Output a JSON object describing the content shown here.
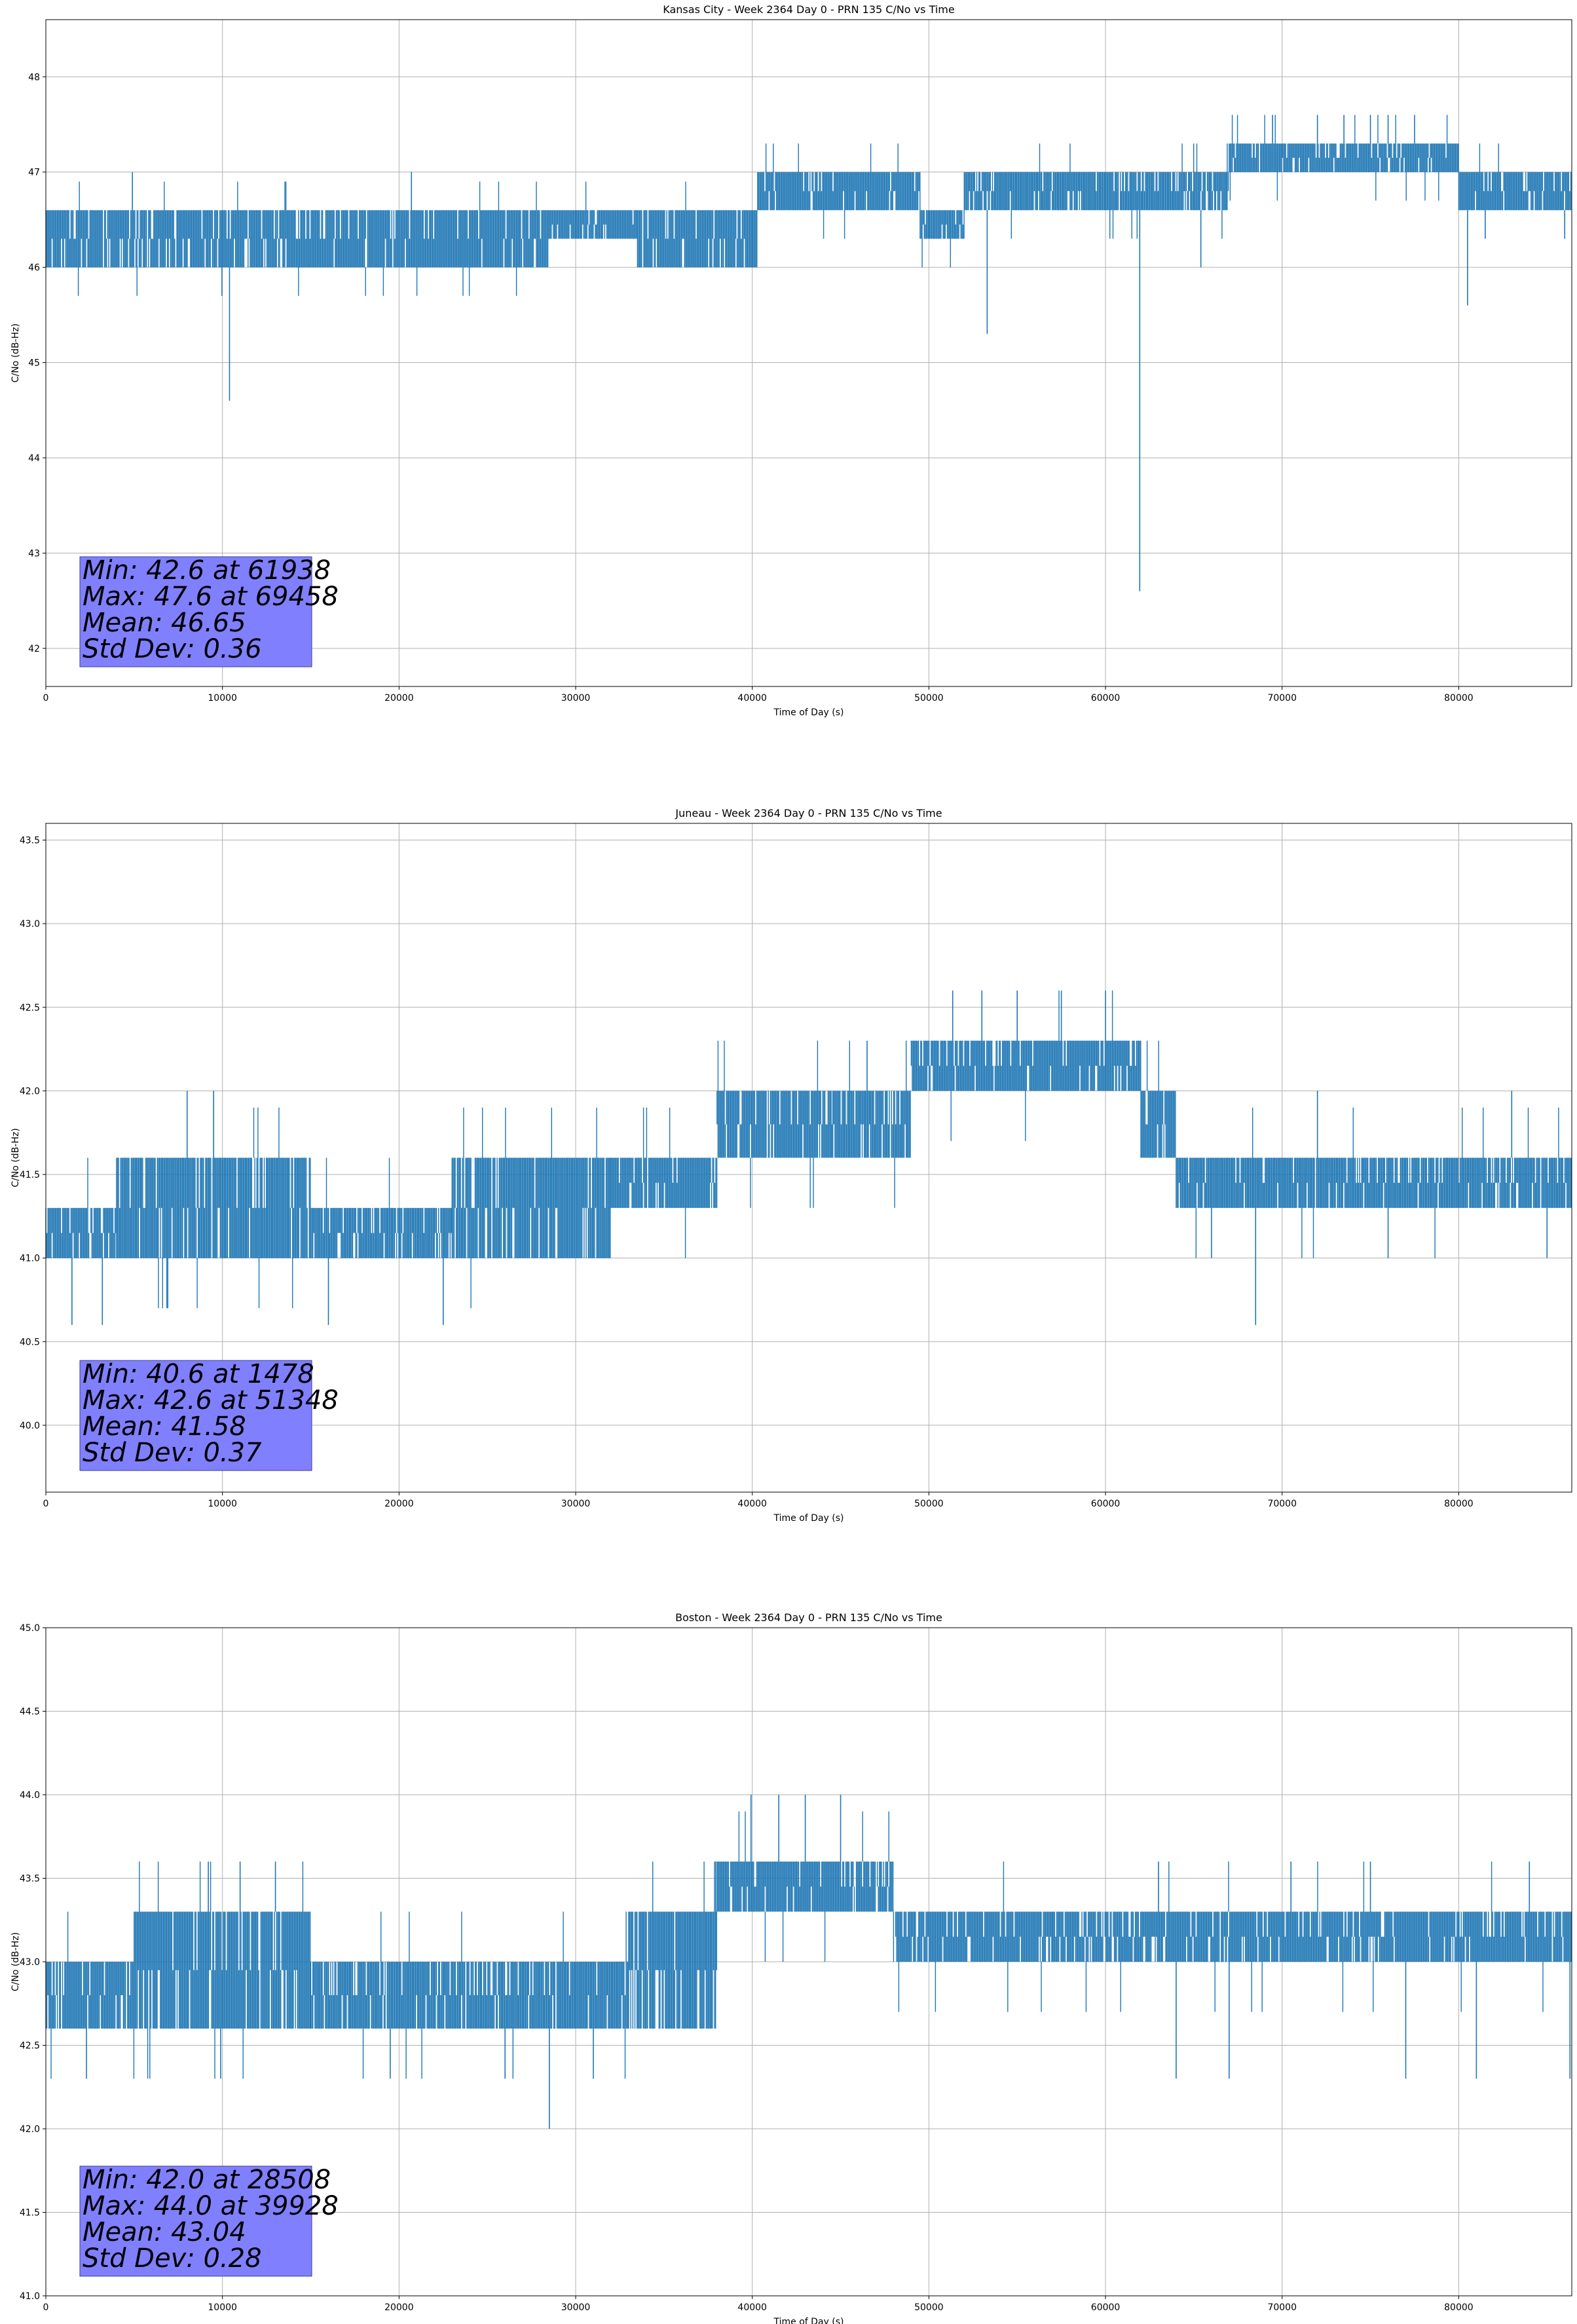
{
  "figure": {
    "background": "#ffffff"
  },
  "series_color": "#1f77b4",
  "stats_box_color": "#8080ff",
  "chart_data": [
    {
      "type": "line",
      "title": "Kansas City - Week 2364 Day 0 - PRN 135 C/No vs Time",
      "xlabel": "Time of Day (s)",
      "ylabel": "C/No (dB-Hz)",
      "xlim": [
        0,
        86400
      ],
      "ylim": [
        41.6,
        48.6
      ],
      "xticks": [
        0,
        10000,
        20000,
        30000,
        40000,
        50000,
        60000,
        70000,
        80000
      ],
      "yticks": [
        42,
        43,
        44,
        45,
        46,
        47,
        48
      ],
      "grid": true,
      "stats": [
        "Min: 42.6 at 61938",
        "Max: 47.6 at 69458",
        "Mean: 46.65",
        "Std Dev: 0.36"
      ],
      "series": [
        {
          "name": "C/No",
          "segments": [
            {
              "x0": 0,
              "x1": 13000,
              "lo": 46.0,
              "hi": 46.6
            },
            {
              "x0": 13000,
              "x1": 20000,
              "lo": 46.0,
              "hi": 46.6
            },
            {
              "x0": 20000,
              "x1": 28500,
              "lo": 46.0,
              "hi": 46.6
            },
            {
              "x0": 28500,
              "x1": 33500,
              "lo": 46.3,
              "hi": 46.6
            },
            {
              "x0": 33500,
              "x1": 40300,
              "lo": 46.0,
              "hi": 46.6
            },
            {
              "x0": 40300,
              "x1": 49500,
              "lo": 46.6,
              "hi": 47.0
            },
            {
              "x0": 49500,
              "x1": 52000,
              "lo": 46.3,
              "hi": 46.6
            },
            {
              "x0": 52000,
              "x1": 67000,
              "lo": 46.6,
              "hi": 47.0
            },
            {
              "x0": 67000,
              "x1": 80000,
              "lo": 47.0,
              "hi": 47.3
            },
            {
              "x0": 80000,
              "x1": 86400,
              "lo": 46.6,
              "hi": 47.0
            }
          ],
          "spikes": [
            {
              "x": 10400,
              "y": 44.6
            },
            {
              "x": 53300,
              "y": 45.3
            },
            {
              "x": 61938,
              "y": 42.6
            },
            {
              "x": 65400,
              "y": 46.0
            },
            {
              "x": 80500,
              "y": 45.6
            },
            {
              "x": 4900,
              "y": 47.0
            },
            {
              "x": 20700,
              "y": 47.0
            },
            {
              "x": 69458,
              "y": 47.6
            },
            {
              "x": 72000,
              "y": 47.6
            },
            {
              "x": 73500,
              "y": 47.6
            },
            {
              "x": 75000,
              "y": 47.6
            },
            {
              "x": 76000,
              "y": 47.6
            },
            {
              "x": 77500,
              "y": 47.6
            },
            {
              "x": 81500,
              "y": 46.3
            },
            {
              "x": 86000,
              "y": 46.3
            }
          ]
        }
      ]
    },
    {
      "type": "line",
      "title": "Juneau - Week 2364 Day 0 - PRN 135 C/No vs Time",
      "xlabel": "Time of Day (s)",
      "ylabel": "C/No (dB-Hz)",
      "xlim": [
        0,
        86400
      ],
      "ylim": [
        39.6,
        43.6
      ],
      "xticks": [
        0,
        10000,
        20000,
        30000,
        40000,
        50000,
        60000,
        70000,
        80000
      ],
      "yticks": [
        40.0,
        40.5,
        41.0,
        41.5,
        42.0,
        42.5,
        43.0,
        43.5
      ],
      "grid": true,
      "stats": [
        "Min: 40.6 at 1478",
        "Max: 42.6 at 51348",
        "Mean: 41.58",
        "Std Dev: 0.37"
      ],
      "series": [
        {
          "name": "C/No",
          "segments": [
            {
              "x0": 0,
              "x1": 4000,
              "lo": 41.0,
              "hi": 41.3
            },
            {
              "x0": 4000,
              "x1": 15000,
              "lo": 41.0,
              "hi": 41.6
            },
            {
              "x0": 15000,
              "x1": 23000,
              "lo": 41.0,
              "hi": 41.3
            },
            {
              "x0": 23000,
              "x1": 32000,
              "lo": 41.0,
              "hi": 41.6
            },
            {
              "x0": 32000,
              "x1": 38000,
              "lo": 41.3,
              "hi": 41.6
            },
            {
              "x0": 38000,
              "x1": 44500,
              "lo": 41.6,
              "hi": 42.0
            },
            {
              "x0": 44500,
              "x1": 49000,
              "lo": 41.6,
              "hi": 42.0
            },
            {
              "x0": 49000,
              "x1": 62000,
              "lo": 42.0,
              "hi": 42.3
            },
            {
              "x0": 62000,
              "x1": 64000,
              "lo": 41.6,
              "hi": 42.0
            },
            {
              "x0": 64000,
              "x1": 86400,
              "lo": 41.3,
              "hi": 41.6
            }
          ],
          "spikes": [
            {
              "x": 1478,
              "y": 40.6
            },
            {
              "x": 3200,
              "y": 40.6
            },
            {
              "x": 16000,
              "y": 40.6
            },
            {
              "x": 22500,
              "y": 40.6
            },
            {
              "x": 68500,
              "y": 40.6
            },
            {
              "x": 8000,
              "y": 42.0
            },
            {
              "x": 9500,
              "y": 42.0
            },
            {
              "x": 46500,
              "y": 42.3
            },
            {
              "x": 51348,
              "y": 42.6
            },
            {
              "x": 53000,
              "y": 42.6
            },
            {
              "x": 55000,
              "y": 42.6
            },
            {
              "x": 57500,
              "y": 42.6
            },
            {
              "x": 60000,
              "y": 42.6
            },
            {
              "x": 66000,
              "y": 41.0
            },
            {
              "x": 76000,
              "y": 41.0
            },
            {
              "x": 85000,
              "y": 41.0
            },
            {
              "x": 72000,
              "y": 42.0
            },
            {
              "x": 83000,
              "y": 42.0
            }
          ]
        }
      ]
    },
    {
      "type": "line",
      "title": "Boston - Week 2364 Day 0 - PRN 135 C/No vs Time",
      "xlabel": "Time of Day (s)",
      "ylabel": "C/No (dB-Hz)",
      "xlim": [
        0,
        86400
      ],
      "ylim": [
        41.0,
        45.0
      ],
      "xticks": [
        0,
        10000,
        20000,
        30000,
        40000,
        50000,
        60000,
        70000,
        80000
      ],
      "yticks": [
        41.0,
        41.5,
        42.0,
        42.5,
        43.0,
        43.5,
        44.0,
        44.5,
        45.0
      ],
      "grid": true,
      "stats": [
        "Min: 42.0 at 28508",
        "Max: 44.0 at 39928",
        "Mean: 43.04",
        "Std Dev: 0.28"
      ],
      "series": [
        {
          "name": "C/No",
          "segments": [
            {
              "x0": 0,
              "x1": 5000,
              "lo": 42.6,
              "hi": 43.0
            },
            {
              "x0": 5000,
              "x1": 15000,
              "lo": 42.6,
              "hi": 43.3
            },
            {
              "x0": 15000,
              "x1": 33000,
              "lo": 42.6,
              "hi": 43.0
            },
            {
              "x0": 33000,
              "x1": 38000,
              "lo": 42.6,
              "hi": 43.3
            },
            {
              "x0": 38000,
              "x1": 48000,
              "lo": 43.3,
              "hi": 43.6
            },
            {
              "x0": 48000,
              "x1": 57000,
              "lo": 43.0,
              "hi": 43.3
            },
            {
              "x0": 57000,
              "x1": 86400,
              "lo": 43.0,
              "hi": 43.3
            }
          ],
          "spikes": [
            {
              "x": 28508,
              "y": 42.0
            },
            {
              "x": 2300,
              "y": 42.3
            },
            {
              "x": 9900,
              "y": 42.3
            },
            {
              "x": 19500,
              "y": 42.3
            },
            {
              "x": 26000,
              "y": 42.3
            },
            {
              "x": 31000,
              "y": 42.3
            },
            {
              "x": 64000,
              "y": 42.3
            },
            {
              "x": 67000,
              "y": 42.3
            },
            {
              "x": 77000,
              "y": 42.3
            },
            {
              "x": 81000,
              "y": 42.3
            },
            {
              "x": 86300,
              "y": 42.3
            },
            {
              "x": 9200,
              "y": 43.6
            },
            {
              "x": 11000,
              "y": 43.6
            },
            {
              "x": 13000,
              "y": 43.6
            },
            {
              "x": 39928,
              "y": 44.0
            },
            {
              "x": 41500,
              "y": 44.0
            },
            {
              "x": 43000,
              "y": 44.0
            },
            {
              "x": 45000,
              "y": 44.0
            },
            {
              "x": 63000,
              "y": 43.6
            },
            {
              "x": 70500,
              "y": 43.6
            },
            {
              "x": 75000,
              "y": 43.6
            },
            {
              "x": 84000,
              "y": 43.6
            }
          ]
        }
      ]
    }
  ]
}
